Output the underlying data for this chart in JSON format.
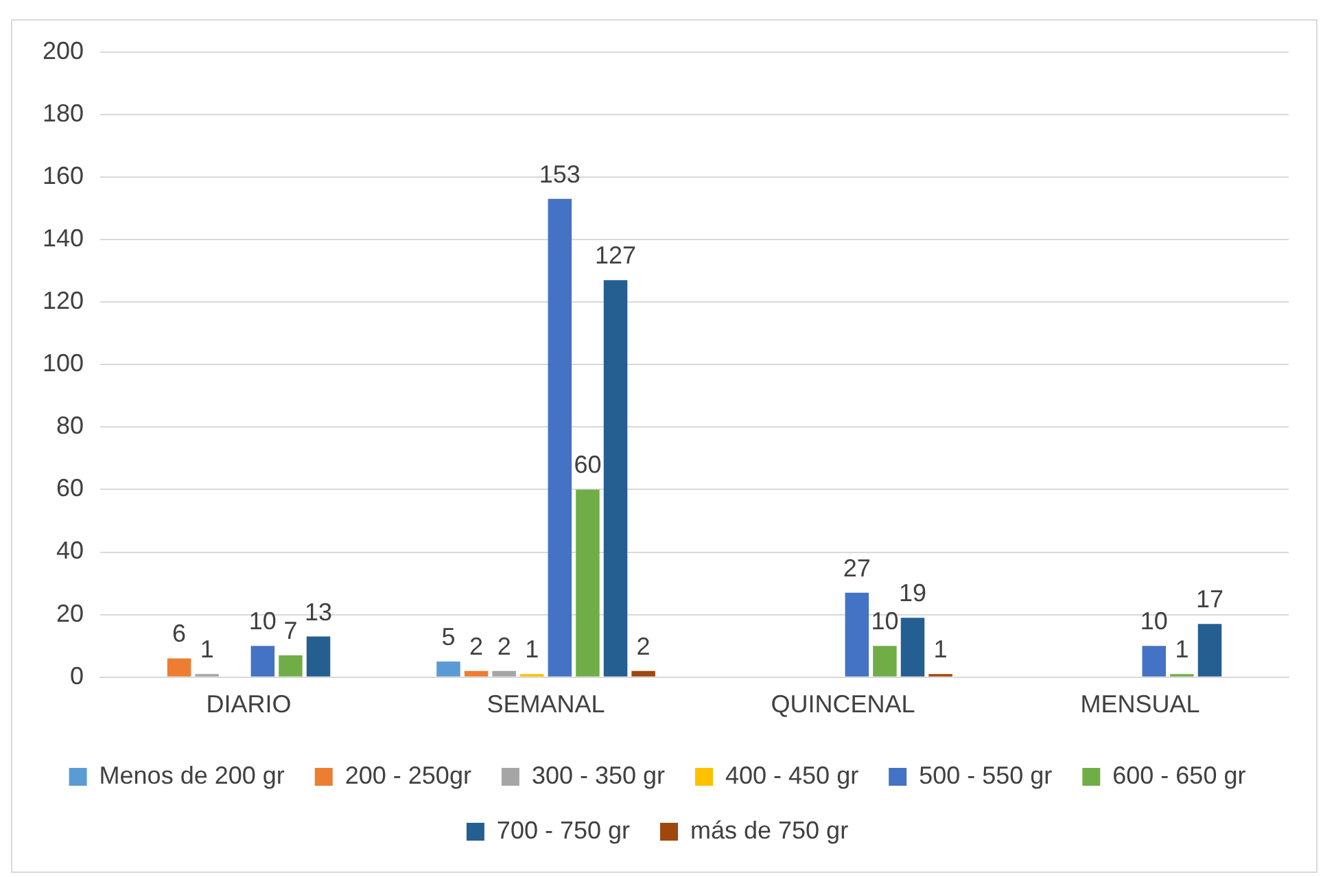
{
  "chart_data": {
    "type": "bar",
    "categories": [
      "DIARIO",
      "SEMANAL",
      "QUINCENAL",
      "MENSUAL"
    ],
    "series": [
      {
        "name": "Menos de 200 gr",
        "color": "#5b9bd5",
        "values": [
          null,
          5,
          null,
          null
        ]
      },
      {
        "name": "200 - 250gr",
        "color": "#ed7d31",
        "values": [
          6,
          2,
          null,
          null
        ]
      },
      {
        "name": "300 - 350 gr",
        "color": "#a5a5a5",
        "values": [
          1,
          2,
          null,
          null
        ]
      },
      {
        "name": "400 - 450 gr",
        "color": "#ffc000",
        "values": [
          null,
          1,
          null,
          null
        ]
      },
      {
        "name": "500 - 550 gr",
        "color": "#4472c4",
        "values": [
          10,
          153,
          27,
          10
        ]
      },
      {
        "name": "600 - 650 gr",
        "color": "#70ad47",
        "values": [
          7,
          60,
          10,
          1
        ]
      },
      {
        "name": "700 - 750 gr",
        "color": "#255e91",
        "values": [
          13,
          127,
          19,
          17
        ]
      },
      {
        "name": "más de 750 gr",
        "color": "#9e480e",
        "values": [
          null,
          2,
          1,
          null
        ]
      }
    ],
    "ylim": [
      0,
      200
    ],
    "yticks": [
      0,
      20,
      40,
      60,
      80,
      100,
      120,
      140,
      160,
      180,
      200
    ],
    "grid": "y",
    "legend": "bottom",
    "data_labels": true
  }
}
